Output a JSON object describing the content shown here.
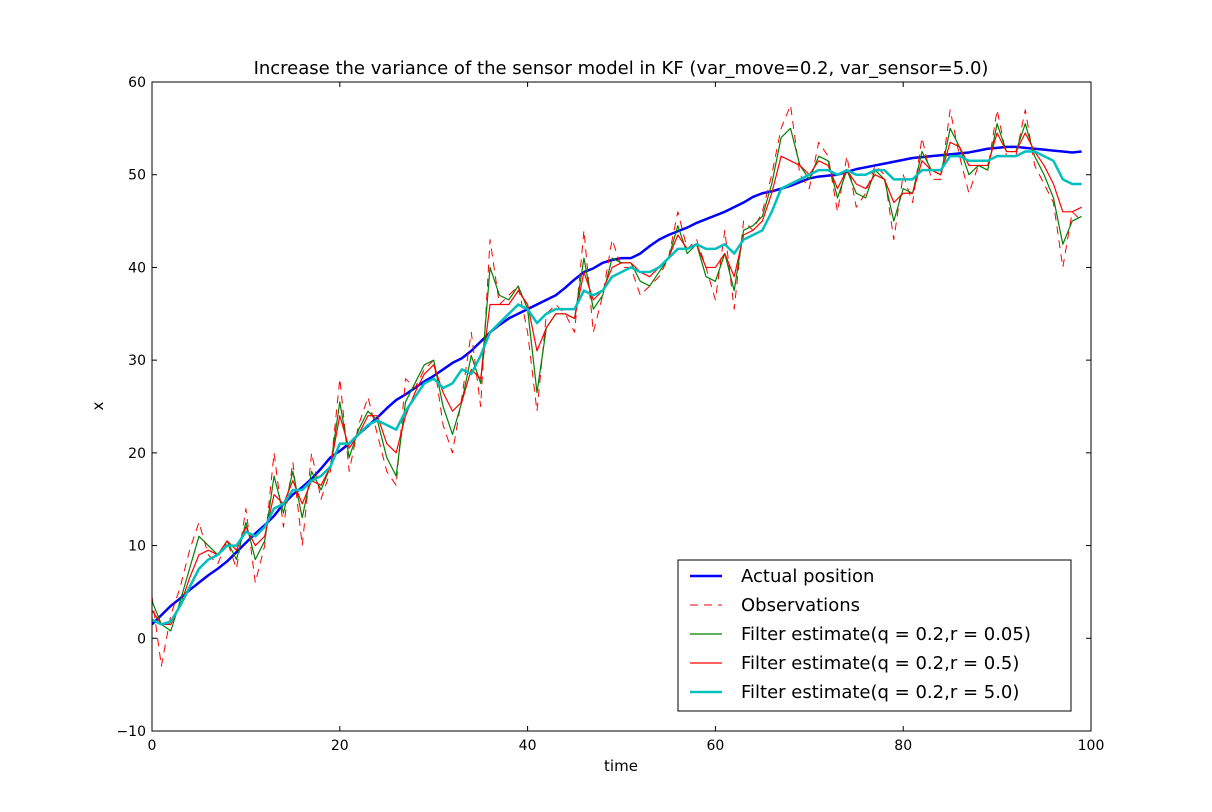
{
  "chart_data": {
    "type": "line",
    "title": "Increase the variance of the sensor model in KF (var_move=0.2, var_sensor=5.0)",
    "xlabel": "time",
    "ylabel": "x",
    "xlim": [
      0,
      100
    ],
    "ylim": [
      -10,
      60
    ],
    "xticks": [
      0,
      20,
      40,
      60,
      80,
      100
    ],
    "yticks": [
      -10,
      0,
      10,
      20,
      30,
      40,
      50,
      60
    ],
    "xtick_labels": [
      "0",
      "20",
      "40",
      "60",
      "80",
      "100"
    ],
    "ytick_labels": [
      "−10",
      "0",
      "10",
      "20",
      "30",
      "40",
      "50",
      "60"
    ],
    "grid": false,
    "legend_position": "lower right",
    "x": [
      0,
      1,
      2,
      3,
      4,
      5,
      6,
      7,
      8,
      9,
      10,
      11,
      12,
      13,
      14,
      15,
      16,
      17,
      18,
      19,
      20,
      21,
      22,
      23,
      24,
      25,
      26,
      27,
      28,
      29,
      30,
      31,
      32,
      33,
      34,
      35,
      36,
      37,
      38,
      39,
      40,
      41,
      42,
      43,
      44,
      45,
      46,
      47,
      48,
      49,
      50,
      51,
      52,
      53,
      54,
      55,
      56,
      57,
      58,
      59,
      60,
      61,
      62,
      63,
      64,
      65,
      66,
      67,
      68,
      69,
      70,
      71,
      72,
      73,
      74,
      75,
      76,
      77,
      78,
      79,
      80,
      81,
      82,
      83,
      84,
      85,
      86,
      87,
      88,
      89,
      90,
      91,
      92,
      93,
      94,
      95,
      96,
      97,
      98,
      99
    ],
    "series": [
      {
        "name": "Actual position",
        "color": "#0000ff",
        "style": "solid",
        "width": 2.5,
        "values": [
          1.5,
          2.5,
          3.5,
          4.3,
          5.2,
          6.0,
          6.8,
          7.5,
          8.3,
          9.3,
          10.3,
          11.3,
          12.2,
          13.2,
          14.5,
          15.5,
          16.3,
          17.2,
          18.3,
          19.5,
          20.2,
          21.0,
          22.0,
          22.9,
          23.8,
          24.8,
          25.7,
          26.3,
          27.0,
          27.7,
          28.3,
          29.0,
          29.7,
          30.2,
          31.0,
          32.0,
          33.0,
          33.8,
          34.5,
          35.0,
          35.5,
          36.0,
          36.5,
          37.0,
          37.8,
          38.7,
          39.5,
          39.9,
          40.5,
          40.8,
          41.0,
          41.0,
          41.5,
          42.3,
          43.0,
          43.5,
          43.9,
          44.3,
          44.8,
          45.2,
          45.6,
          46.0,
          46.5,
          47.0,
          47.6,
          48.0,
          48.2,
          48.5,
          48.8,
          49.2,
          49.6,
          49.8,
          49.9,
          50.0,
          50.3,
          50.6,
          50.8,
          51.0,
          51.2,
          51.4,
          51.6,
          51.8,
          51.9,
          52.0,
          52.1,
          52.2,
          52.3,
          52.4,
          52.6,
          52.8,
          52.9,
          53.0,
          53.0,
          52.9,
          52.8,
          52.7,
          52.6,
          52.5,
          52.4,
          52.5
        ]
      },
      {
        "name": "Observations",
        "color": "#ff0000",
        "style": "dashed",
        "width": 1,
        "values": [
          4.5,
          -3,
          2.5,
          5.5,
          9.5,
          12.5,
          9,
          8,
          10.5,
          7.5,
          14,
          6,
          10,
          20,
          12,
          19,
          10,
          20,
          15,
          18,
          28,
          18,
          23,
          26,
          22,
          18,
          16.5,
          28,
          27,
          29,
          30,
          23,
          20,
          26,
          33,
          25,
          43,
          36,
          37,
          38,
          33,
          24.5,
          35,
          36,
          35,
          33,
          44,
          33,
          37,
          43,
          40,
          40,
          37,
          38,
          39,
          41,
          46,
          42,
          43,
          40,
          36.5,
          44,
          35.5,
          45,
          44,
          46,
          50,
          55,
          57.5,
          50,
          48.5,
          53.5,
          52,
          46,
          52,
          46.5,
          48,
          51,
          50,
          43,
          50,
          47,
          54,
          49.5,
          49.5,
          57,
          52,
          48,
          51,
          50.5,
          57,
          52,
          52,
          57,
          51,
          49,
          47,
          40,
          46,
          45
        ]
      },
      {
        "name": "Filter estimate(q = 0.2,r = 0.05)",
        "color": "#008000",
        "style": "solid",
        "width": 1.2,
        "values": [
          4.0,
          1.5,
          0.8,
          4.0,
          7.5,
          11.0,
          10.0,
          9.0,
          10.5,
          8.5,
          12.5,
          8.5,
          10.5,
          17.5,
          13.5,
          18.0,
          13.0,
          18.0,
          16.0,
          18.5,
          25.5,
          19.5,
          22.5,
          24.5,
          23.5,
          19.5,
          17.5,
          25.5,
          27.5,
          29.5,
          30.0,
          25.0,
          22.0,
          25.5,
          30.5,
          27.5,
          40.0,
          37.0,
          36.5,
          38.0,
          35.5,
          26.5,
          33.5,
          35.0,
          35.0,
          34.5,
          41.0,
          35.5,
          37.0,
          41.0,
          40.5,
          40.5,
          38.5,
          38.0,
          39.5,
          41.0,
          44.5,
          41.5,
          42.5,
          39.0,
          38.5,
          41.5,
          37.5,
          44.0,
          44.5,
          45.5,
          49.0,
          54.0,
          55.0,
          51.0,
          49.5,
          52.0,
          51.5,
          47.5,
          50.5,
          48.0,
          47.5,
          50.5,
          49.5,
          45.0,
          48.5,
          48.0,
          52.5,
          50.5,
          50.0,
          55.0,
          53.0,
          50.0,
          51.0,
          50.5,
          55.5,
          52.5,
          52.5,
          55.5,
          52.0,
          50.0,
          47.5,
          42.5,
          45.0,
          45.5
        ]
      },
      {
        "name": "Filter estimate(q = 0.2,r = 0.5)",
        "color": "#ff0000",
        "style": "solid",
        "width": 1.2,
        "values": [
          3.0,
          1.5,
          1.5,
          3.5,
          6.5,
          9.0,
          9.5,
          9.0,
          10.5,
          9.5,
          12.0,
          10.0,
          11.0,
          15.5,
          14.5,
          17.0,
          14.5,
          17.0,
          16.5,
          18.5,
          24.0,
          20.5,
          22.0,
          24.0,
          24.0,
          21.0,
          20.0,
          24.0,
          26.5,
          28.5,
          29.5,
          26.5,
          24.5,
          25.5,
          29.0,
          28.0,
          36.0,
          36.0,
          36.0,
          37.5,
          36.0,
          31.0,
          33.5,
          35.0,
          35.0,
          34.5,
          39.5,
          36.5,
          37.5,
          40.0,
          40.5,
          40.5,
          39.5,
          39.0,
          40.0,
          41.0,
          43.5,
          42.0,
          42.5,
          40.0,
          40.0,
          41.5,
          39.0,
          43.5,
          44.0,
          45.0,
          48.0,
          52.0,
          51.5,
          51.0,
          50.0,
          51.5,
          51.0,
          48.5,
          50.5,
          49.0,
          48.5,
          50.0,
          49.5,
          47.0,
          48.0,
          48.0,
          51.5,
          50.5,
          50.0,
          53.5,
          53.0,
          51.0,
          51.0,
          51.0,
          54.5,
          52.5,
          52.5,
          54.5,
          52.5,
          51.0,
          49.0,
          46.0,
          46.0,
          46.5
        ]
      },
      {
        "name": "Filter estimate(q = 0.2,r = 5.0)",
        "color": "#00bfbf",
        "style": "solid",
        "width": 2.5,
        "values": [
          2.0,
          1.5,
          1.8,
          3.5,
          5.5,
          7.5,
          8.5,
          9.0,
          10.0,
          10.0,
          11.5,
          11.0,
          12.0,
          14.0,
          14.5,
          16.0,
          16.0,
          17.0,
          17.5,
          18.5,
          21.0,
          21.0,
          22.0,
          23.0,
          23.5,
          23.0,
          22.5,
          24.5,
          26.0,
          27.5,
          28.0,
          27.0,
          27.5,
          29.0,
          28.5,
          30.5,
          33.0,
          34.0,
          35.0,
          36.0,
          35.5,
          34.0,
          35.0,
          35.5,
          35.5,
          35.5,
          37.5,
          37.0,
          37.5,
          39.0,
          39.5,
          40.0,
          39.5,
          39.5,
          40.0,
          41.0,
          42.0,
          42.0,
          42.5,
          42.0,
          42.0,
          42.5,
          41.5,
          43.0,
          43.5,
          44.0,
          46.0,
          48.5,
          49.0,
          49.5,
          50.0,
          50.5,
          50.5,
          50.0,
          50.5,
          50.0,
          50.0,
          50.5,
          50.5,
          49.5,
          49.5,
          49.5,
          50.5,
          50.5,
          50.5,
          52.0,
          52.0,
          51.5,
          51.5,
          51.5,
          52.0,
          52.0,
          52.0,
          52.5,
          52.5,
          52.0,
          51.5,
          49.5,
          49.0,
          49.0
        ]
      }
    ]
  }
}
